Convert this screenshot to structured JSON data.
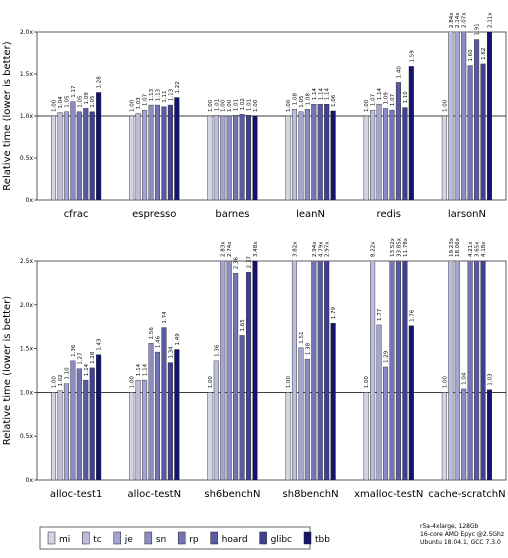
{
  "chart_data": [
    {
      "type": "bar",
      "y_label": "Relative time (lower is better)",
      "categories": [
        "cfrac",
        "espresso",
        "barnes",
        "leanN",
        "redis",
        "larsonN"
      ],
      "ylim": [
        0,
        2.0
      ],
      "yticks": [
        {
          "value": 0,
          "label": "0x"
        },
        {
          "value": 0.5,
          "label": "0.5x"
        },
        {
          "value": 1.0,
          "label": "1.0x"
        },
        {
          "value": 1.5,
          "label": "1.5x"
        },
        {
          "value": 2.0,
          "label": "2.0x"
        }
      ],
      "reference_line": 1,
      "series": [
        {
          "name": "mi",
          "color": "#d4d4e4",
          "values": [
            1.0,
            1.0,
            1.0,
            1.0,
            1.0,
            1.0
          ],
          "value_labels": [
            "1.00",
            "1.00",
            "1.00",
            "1.00",
            "1.00",
            "1.00"
          ]
        },
        {
          "name": "tc",
          "color": "#bcbcdc",
          "values": [
            1.04,
            1.03,
            1.01,
            1.08,
            1.07,
            2.84
          ],
          "value_labels": [
            "1.04",
            "1.03",
            "1.01",
            "1.08",
            "1.07",
            "2.84x"
          ]
        },
        {
          "name": "je",
          "color": "#a4a4d0",
          "values": [
            1.05,
            1.07,
            1.0,
            1.05,
            1.14,
            2.14
          ],
          "value_labels": [
            "1.05",
            "1.07",
            "1.00",
            "1.05",
            "1.14",
            "2.14x"
          ]
        },
        {
          "name": "sn",
          "color": "#8c8cc4",
          "values": [
            1.17,
            1.13,
            1.0,
            1.08,
            1.09,
            2.07
          ],
          "value_labels": [
            "1.17",
            "1.13",
            "1.00",
            "1.08",
            "1.09",
            "2.07x"
          ]
        },
        {
          "name": "rp",
          "color": "#7474b4",
          "values": [
            1.05,
            1.13,
            1.01,
            1.14,
            1.07,
            1.6
          ],
          "value_labels": [
            "1.05",
            "1.13",
            "1.01",
            "1.14",
            "1.07",
            "1.60"
          ]
        },
        {
          "name": "hoard",
          "color": "#5a5aa4",
          "values": [
            1.09,
            1.11,
            1.02,
            1.14,
            1.4,
            1.91
          ],
          "value_labels": [
            "1.09",
            "1.11",
            "1.02",
            "1.14",
            "1.40",
            "1.91"
          ]
        },
        {
          "name": "glibc",
          "color": "#404092",
          "values": [
            1.05,
            1.13,
            1.01,
            1.14,
            1.1,
            1.62
          ],
          "value_labels": [
            "1.05",
            "1.13",
            "1.01",
            "1.14",
            "1.10",
            "1.62"
          ]
        },
        {
          "name": "tbb",
          "color": "#14146e",
          "values": [
            1.28,
            1.22,
            1.0,
            1.06,
            1.59,
            2.11
          ],
          "value_labels": [
            "1.28",
            "1.22",
            "1.00",
            "1.06",
            "1.59",
            "2.11x"
          ]
        }
      ]
    },
    {
      "type": "bar",
      "y_label": "Relative time (lower is better)",
      "categories": [
        "alloc-test1",
        "alloc-testN",
        "sh6benchN",
        "sh8benchN",
        "xmalloc-testN",
        "cache-scratchN"
      ],
      "ylim": [
        0,
        2.5
      ],
      "yticks": [
        {
          "value": 0,
          "label": "0x"
        },
        {
          "value": 0.5,
          "label": "0.5x"
        },
        {
          "value": 1.0,
          "label": "1.0x"
        },
        {
          "value": 1.5,
          "label": "1.5x"
        },
        {
          "value": 2.0,
          "label": "2.0x"
        },
        {
          "value": 2.5,
          "label": "2.5x"
        }
      ],
      "reference_line": 1,
      "series": [
        {
          "color": "#d4d4e4",
          "values": [
            1.0,
            1.0,
            1.0,
            1.0,
            1.0,
            1.0
          ],
          "value_labels": [
            "1.00",
            "1.00",
            "1.00",
            "1.00",
            "1.00",
            "1.00"
          ]
        },
        {
          "color": "#bcbcdc",
          "values": [
            1.02,
            1.14,
            1.36,
            3.82,
            8.22,
            19.23
          ],
          "value_labels": [
            "1.02",
            "1.14",
            "1.36",
            "3.82x",
            "8.22x",
            "19.23x"
          ]
        },
        {
          "color": "#a4a4d0",
          "values": [
            1.1,
            1.14,
            2.83,
            1.51,
            1.77,
            18.06
          ],
          "value_labels": [
            "1.10",
            "1.14",
            "2.83x",
            "1.51",
            "1.77",
            "18.06x"
          ]
        },
        {
          "color": "#8c8cc4",
          "values": [
            1.36,
            1.56,
            2.74,
            1.38,
            1.29,
            1.04
          ],
          "value_labels": [
            "1.36",
            "1.56",
            "2.74x",
            "1.38",
            "1.29",
            "1.04"
          ]
        },
        {
          "color": "#7474b4",
          "values": [
            1.27,
            1.46,
            2.36,
            2.94,
            13.52,
            4.21
          ],
          "value_labels": [
            "1.27",
            "1.46",
            "2.36",
            "2.94x",
            "13.52x",
            "4.21x"
          ]
        },
        {
          "color": "#5a5aa4",
          "values": [
            1.14,
            1.74,
            1.65,
            4.79,
            33.85,
            3.65
          ],
          "value_labels": [
            "1.14",
            "1.74",
            "1.65",
            "4.79x",
            "33.85x",
            "3.65x"
          ]
        },
        {
          "color": "#404092",
          "values": [
            1.28,
            1.34,
            2.37,
            2.97,
            11.78,
            4.18
          ],
          "value_labels": [
            "1.28",
            "1.34",
            "2.37",
            "2.97x",
            "11.78x",
            "4.18x"
          ]
        },
        {
          "color": "#14146e",
          "values": [
            1.43,
            1.49,
            3.48,
            1.79,
            1.76,
            1.03
          ],
          "value_labels": [
            "1.43",
            "1.49",
            "3.48x",
            "1.79",
            "1.76",
            "1.03"
          ]
        }
      ]
    }
  ],
  "notes": [
    "r5a-4xlarge, 128Gb",
    "16-core AMD Epyc @2.5Ghz",
    "Ubuntu 18.04.1, GCC 7.3.0"
  ]
}
